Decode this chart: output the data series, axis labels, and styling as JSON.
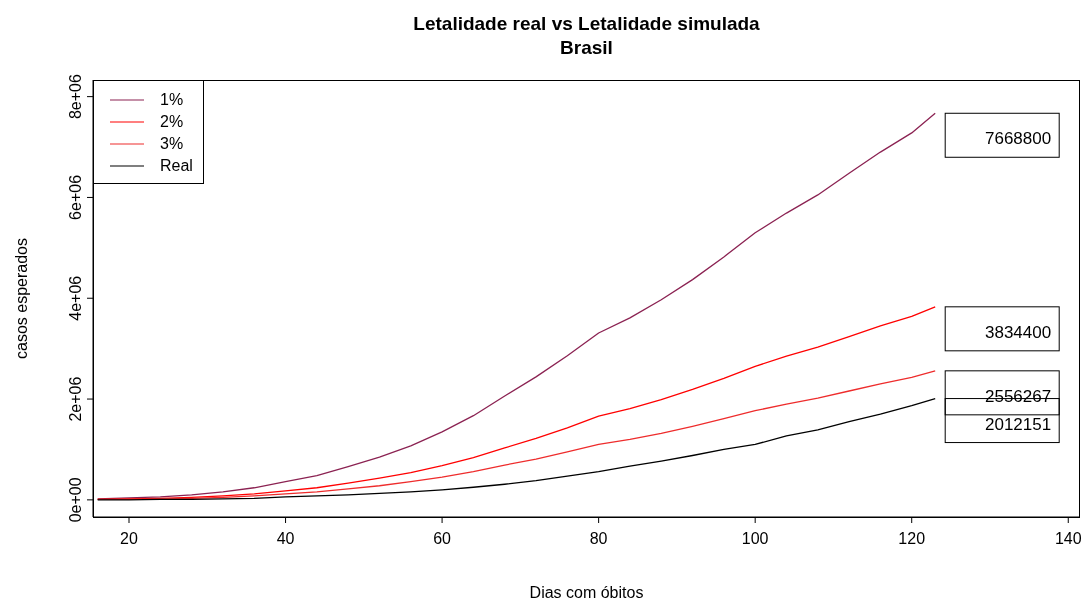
{
  "chart_data": {
    "type": "line",
    "title": "Letalidade real vs Letalidade simulada",
    "subtitle": "Brasil",
    "xlabel": "Dias com  óbitos",
    "ylabel": "casos esperados",
    "x": [
      16,
      20,
      24,
      28,
      32,
      36,
      40,
      44,
      48,
      52,
      56,
      60,
      64,
      68,
      72,
      76,
      80,
      84,
      88,
      92,
      96,
      100,
      104,
      108,
      112,
      116,
      120,
      123
    ],
    "series": [
      {
        "name": "1%",
        "color": "#8b2252",
        "values": [
          20000,
          40000,
          60000,
          100000,
          160000,
          240000,
          360000,
          480000,
          660000,
          850000,
          1070000,
          1350000,
          1670000,
          2060000,
          2440000,
          2860000,
          3310000,
          3610000,
          3970000,
          4370000,
          4820000,
          5300000,
          5690000,
          6050000,
          6480000,
          6900000,
          7280000,
          7670000
        ]
      },
      {
        "name": "2%",
        "color": "#ff0000",
        "values": [
          10000,
          20000,
          30000,
          50000,
          80000,
          120000,
          180000,
          240000,
          330000,
          430000,
          540000,
          680000,
          840000,
          1030000,
          1220000,
          1430000,
          1660000,
          1810000,
          1990000,
          2190000,
          2410000,
          2650000,
          2850000,
          3030000,
          3240000,
          3450000,
          3640000,
          3830000
        ]
      },
      {
        "name": "3%",
        "color": "#ee2c2c",
        "values": [
          10000,
          10000,
          20000,
          30000,
          50000,
          80000,
          120000,
          160000,
          220000,
          280000,
          360000,
          450000,
          560000,
          690000,
          810000,
          950000,
          1100000,
          1200000,
          1320000,
          1460000,
          1610000,
          1770000,
          1900000,
          2020000,
          2160000,
          2300000,
          2430000,
          2560000
        ]
      },
      {
        "name": "Real",
        "color": "#000000",
        "values": [
          0,
          0,
          10000,
          10000,
          20000,
          30000,
          60000,
          80000,
          100000,
          130000,
          160000,
          200000,
          250000,
          310000,
          380000,
          470000,
          560000,
          670000,
          770000,
          880000,
          1000000,
          1100000,
          1270000,
          1390000,
          1550000,
          1700000,
          1870000,
          2010000
        ]
      }
    ],
    "annotations": [
      "7668800",
      "3834400",
      "2556267",
      "2012151"
    ],
    "xlim": [
      15.4,
      141.5
    ],
    "xticks": [
      20,
      40,
      60,
      80,
      100,
      120,
      140
    ],
    "ylim": [
      -340000,
      8330000
    ],
    "yticks": [
      {
        "value": 0,
        "label": "0e+00"
      },
      {
        "value": 2000000,
        "label": "2e+06"
      },
      {
        "value": 4000000,
        "label": "4e+06"
      },
      {
        "value": 6000000,
        "label": "6e+06"
      },
      {
        "value": 8000000,
        "label": "8e+06"
      }
    ],
    "legend": "top left",
    "grid": false,
    "marker": "none",
    "line_style": "solid"
  }
}
